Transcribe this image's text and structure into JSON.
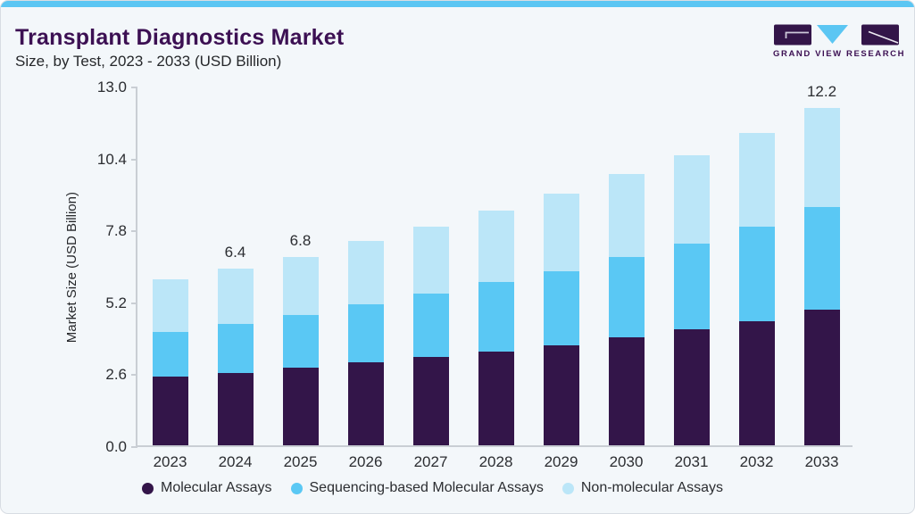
{
  "header": {
    "title": "Transplant Diagnostics Market",
    "subtitle": "Size, by Test, 2023 - 2033 (USD Billion)"
  },
  "logo": {
    "brand": "GRAND VIEW RESEARCH"
  },
  "chart_data": {
    "type": "bar",
    "stacked": true,
    "title": "Transplant Diagnostics Market Size, by Test, 2023 - 2033 (USD Billion)",
    "xlabel": "",
    "ylabel": "Market Size (USD Billion)",
    "ylim": [
      0,
      13
    ],
    "yticks": [
      0,
      2.6,
      5.2,
      7.8,
      10.4,
      13
    ],
    "ytick_labels": [
      "0.0",
      "2.6",
      "5.2",
      "7.8",
      "10.4",
      "13.0"
    ],
    "categories": [
      "2023",
      "2024",
      "2025",
      "2026",
      "2027",
      "2028",
      "2029",
      "2030",
      "2031",
      "2032",
      "2033"
    ],
    "series": [
      {
        "name": "Molecular Assays",
        "color": "#331549",
        "values": [
          2.5,
          2.6,
          2.8,
          3.0,
          3.2,
          3.4,
          3.6,
          3.9,
          4.2,
          4.5,
          4.9
        ]
      },
      {
        "name": "Sequencing-based Molecular Assays",
        "color": "#5AC8F4",
        "values": [
          1.6,
          1.8,
          1.9,
          2.1,
          2.3,
          2.5,
          2.7,
          2.9,
          3.1,
          3.4,
          3.7
        ]
      },
      {
        "name": "Non-molecular Assays",
        "color": "#BBE6F8",
        "values": [
          1.9,
          2.0,
          2.1,
          2.3,
          2.4,
          2.6,
          2.8,
          3.0,
          3.2,
          3.4,
          3.6
        ]
      }
    ],
    "totals": [
      6.0,
      6.4,
      6.8,
      7.4,
      7.9,
      8.5,
      9.1,
      9.8,
      10.5,
      11.3,
      12.2
    ],
    "bar_labels": [
      "",
      "6.4",
      "6.8",
      "",
      "",
      "",
      "",
      "",
      "",
      "",
      "12.2"
    ],
    "legend_position": "bottom",
    "grid": false
  },
  "colors": {
    "accent_blue": "#5BC6F3",
    "background": "#F3F7FA",
    "title_purple": "#3C1053",
    "axis_line": "#C9CED4",
    "text_dark": "#2B2D31"
  }
}
